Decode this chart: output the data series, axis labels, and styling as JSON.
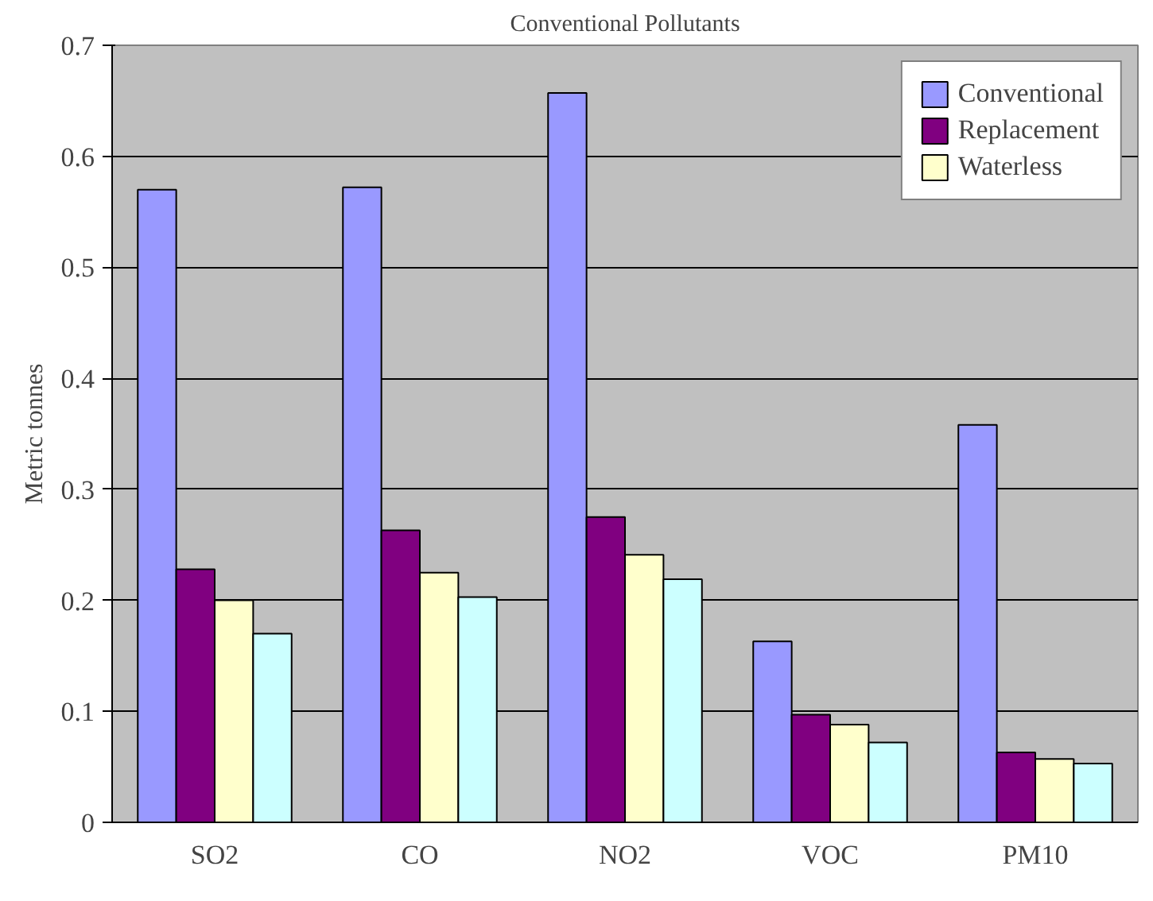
{
  "chart_data": {
    "type": "bar",
    "title": "Conventional Pollutants",
    "ylabel": "Metric tonnes",
    "categories": [
      "SO2",
      "CO",
      "NO2",
      "VOC",
      "PM10"
    ],
    "series": [
      {
        "name": "Conventional",
        "color": "#9999ff",
        "values": [
          0.57,
          0.572,
          0.657,
          0.163,
          0.358
        ]
      },
      {
        "name": "Replacement",
        "color": "#800080",
        "values": [
          0.228,
          0.263,
          0.275,
          0.097,
          0.063
        ]
      },
      {
        "name": "Waterless",
        "color": "#ffffcc",
        "values": [
          0.2,
          0.225,
          0.241,
          0.088,
          0.057
        ]
      },
      {
        "color": "#ccffff",
        "values": [
          0.17,
          0.203,
          0.219,
          0.072,
          0.053
        ]
      }
    ],
    "ylim": [
      0,
      0.7
    ],
    "yticks": [
      0,
      0.1,
      0.2,
      0.3,
      0.4,
      0.5,
      0.6,
      0.7
    ],
    "grid": "y",
    "legend": "top right"
  }
}
